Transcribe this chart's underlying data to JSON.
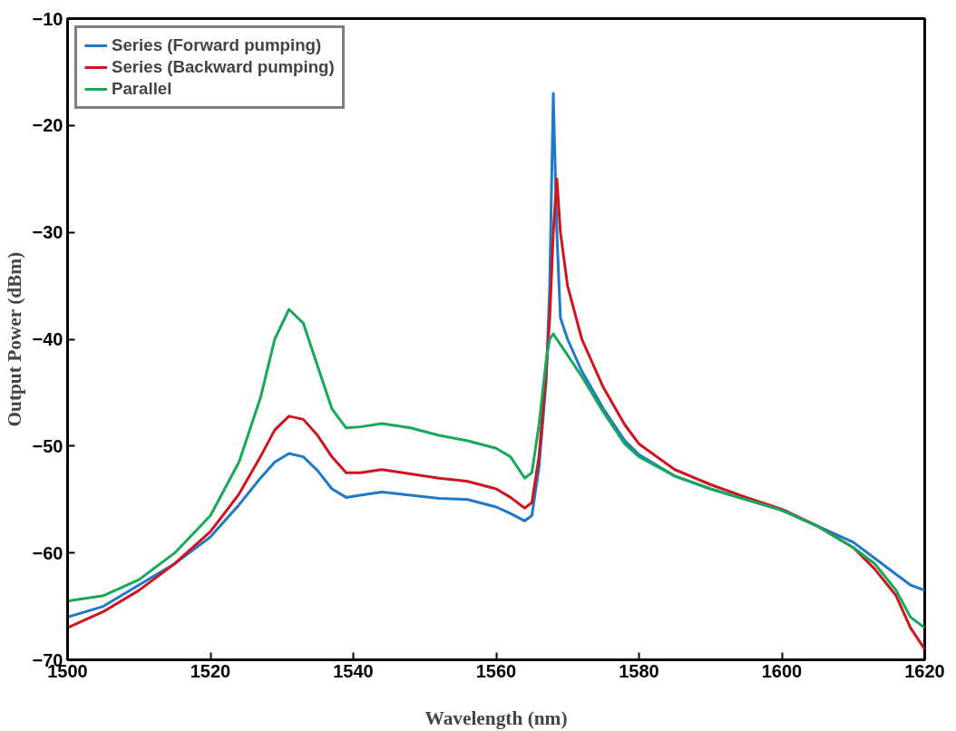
{
  "chart_data": {
    "type": "line",
    "xlabel": "Wavelength (nm)",
    "ylabel": "Output Power (dBm)",
    "x": [
      1500,
      1505,
      1510,
      1515,
      1520,
      1524,
      1527,
      1529,
      1531,
      1533,
      1535,
      1537,
      1539,
      1541,
      1544,
      1548,
      1552,
      1556,
      1560,
      1562,
      1564,
      1565,
      1566,
      1567,
      1567.5,
      1568,
      1568.5,
      1569,
      1570,
      1572,
      1575,
      1578,
      1580,
      1585,
      1590,
      1595,
      1600,
      1605,
      1610,
      1613,
      1616,
      1618,
      1620
    ],
    "series": [
      {
        "name": "Series (Forward pumping)",
        "color": "#1f78c8",
        "values": [
          -66,
          -65,
          -63,
          -61,
          -58.5,
          -55.5,
          -53,
          -51.5,
          -50.7,
          -51,
          -52.3,
          -54,
          -54.8,
          -54.6,
          -54.3,
          -54.6,
          -54.9,
          -55,
          -55.7,
          -56.3,
          -57,
          -56.5,
          -52,
          -44,
          -35,
          -17,
          -30,
          -38,
          -40,
          -43,
          -46.5,
          -49.5,
          -50.8,
          -52.8,
          -54,
          -55,
          -56,
          -57.5,
          -59,
          -60.5,
          -62,
          -63,
          -63.5
        ]
      },
      {
        "name": "Series (Backward pumping)",
        "color": "#d0141e",
        "values": [
          -67,
          -65.5,
          -63.5,
          -61,
          -58,
          -54.5,
          -51,
          -48.5,
          -47.2,
          -47.5,
          -49,
          -51,
          -52.5,
          -52.5,
          -52.2,
          -52.6,
          -53,
          -53.3,
          -54,
          -54.8,
          -55.8,
          -55.3,
          -51,
          -43,
          -38,
          -30,
          -25,
          -30,
          -35,
          -40,
          -44.5,
          -48,
          -49.8,
          -52.2,
          -53.6,
          -54.8,
          -55.9,
          -57.5,
          -59.5,
          -61.5,
          -64,
          -67,
          -69
        ]
      },
      {
        "name": "Parallel",
        "color": "#17a85a",
        "values": [
          -64.5,
          -64,
          -62.5,
          -60,
          -56.5,
          -51.5,
          -45.5,
          -40,
          -37.2,
          -38.5,
          -42.5,
          -46.5,
          -48.3,
          -48.2,
          -47.9,
          -48.3,
          -49,
          -49.5,
          -50.2,
          -51,
          -53,
          -52.5,
          -48,
          -42,
          -40,
          -39.5,
          -40,
          -40.5,
          -41.5,
          -43.5,
          -46.8,
          -49.8,
          -51,
          -52.8,
          -54,
          -55,
          -56,
          -57.5,
          -59.5,
          -61,
          -63.5,
          -66,
          -67
        ]
      }
    ],
    "xlim": [
      1500,
      1620
    ],
    "xticks": [
      1500,
      1520,
      1540,
      1560,
      1580,
      1600,
      1620
    ],
    "ylim": [
      -70,
      -10
    ],
    "yticks": [
      -70,
      -60,
      -50,
      -40,
      -30,
      -20,
      -10
    ],
    "grid": false,
    "legend": "top left",
    "marker": "none",
    "line_style": "solid"
  }
}
